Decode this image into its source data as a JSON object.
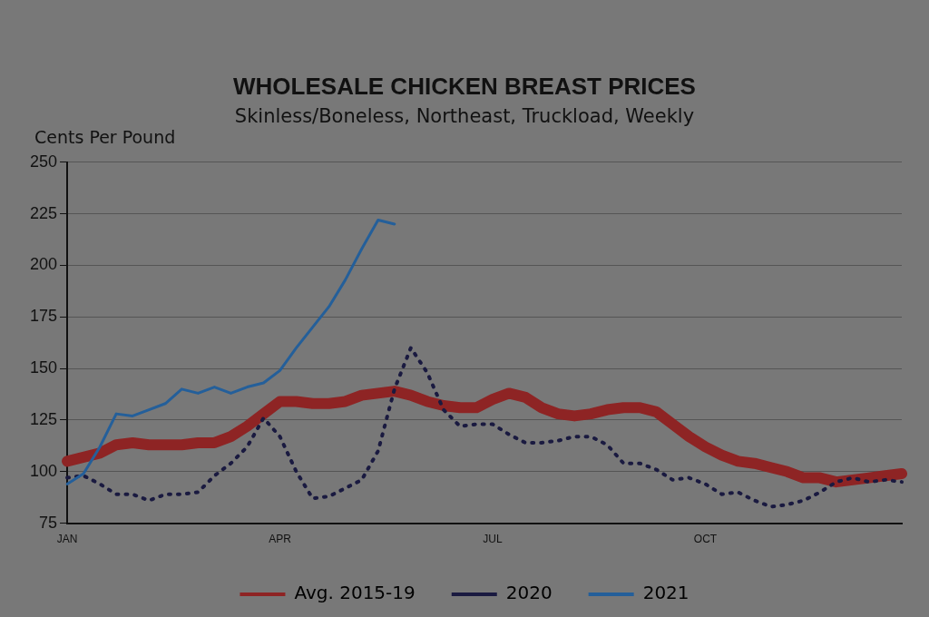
{
  "chart_data": {
    "type": "line",
    "title": "WHOLESALE CHICKEN BREAST PRICES",
    "subtitle": "Skinless/Boneless, Northeast, Truckload, Weekly",
    "ylabel": "Cents Per Pound",
    "categories": [
      "JAN",
      null,
      null,
      null,
      null,
      null,
      null,
      null,
      null,
      null,
      null,
      null,
      null,
      "APR",
      null,
      null,
      null,
      null,
      null,
      null,
      null,
      null,
      null,
      null,
      null,
      null,
      "JUL",
      null,
      null,
      null,
      null,
      null,
      null,
      null,
      null,
      null,
      null,
      null,
      null,
      "OCT",
      null,
      null,
      null,
      null,
      null,
      null,
      null,
      null,
      null,
      null,
      null,
      null
    ],
    "ylim": [
      75,
      250
    ],
    "yticks": [
      75,
      100,
      125,
      150,
      175,
      200,
      225,
      250
    ],
    "grid": "y",
    "legend": "bottom",
    "marker": "none",
    "series": [
      {
        "name": "Avg. 2015-19",
        "color": "#8e2424",
        "line_style": "solid",
        "values": [
          105,
          107,
          109,
          113,
          114,
          113,
          113,
          113,
          114,
          114,
          117,
          122,
          128,
          134,
          134,
          133,
          133,
          134,
          137,
          138,
          139,
          137,
          134,
          132,
          131,
          131,
          135,
          138,
          136,
          131,
          128,
          127,
          128,
          130,
          131,
          131,
          129,
          123,
          117,
          112,
          108,
          105,
          104,
          102,
          100,
          97,
          97,
          95,
          96,
          97,
          98,
          99
        ]
      },
      {
        "name": "2020",
        "color": "#1a1a40",
        "line_style": "dotted",
        "values": [
          97,
          98,
          94,
          89,
          89,
          86,
          89,
          89,
          90,
          98,
          104,
          112,
          126,
          117,
          100,
          87,
          88,
          92,
          96,
          110,
          140,
          160,
          148,
          130,
          122,
          123,
          123,
          118,
          114,
          114,
          115,
          117,
          117,
          113,
          104,
          104,
          101,
          96,
          97,
          94,
          89,
          90,
          86,
          83,
          84,
          86,
          90,
          95,
          97,
          95,
          96,
          95
        ]
      },
      {
        "name": "2021",
        "color": "#245f9a",
        "line_style": "solid",
        "values": [
          94,
          99,
          112,
          128,
          127,
          130,
          133,
          140,
          138,
          141,
          138,
          141,
          143,
          149,
          160,
          170,
          180,
          193,
          208,
          222,
          220,
          null,
          null,
          null,
          null,
          null,
          null,
          null,
          null,
          null,
          null,
          null,
          null,
          null,
          null,
          null,
          null,
          null,
          null,
          null,
          null,
          null,
          null,
          null,
          null,
          null,
          null,
          null,
          null,
          null,
          null,
          null
        ]
      }
    ]
  }
}
